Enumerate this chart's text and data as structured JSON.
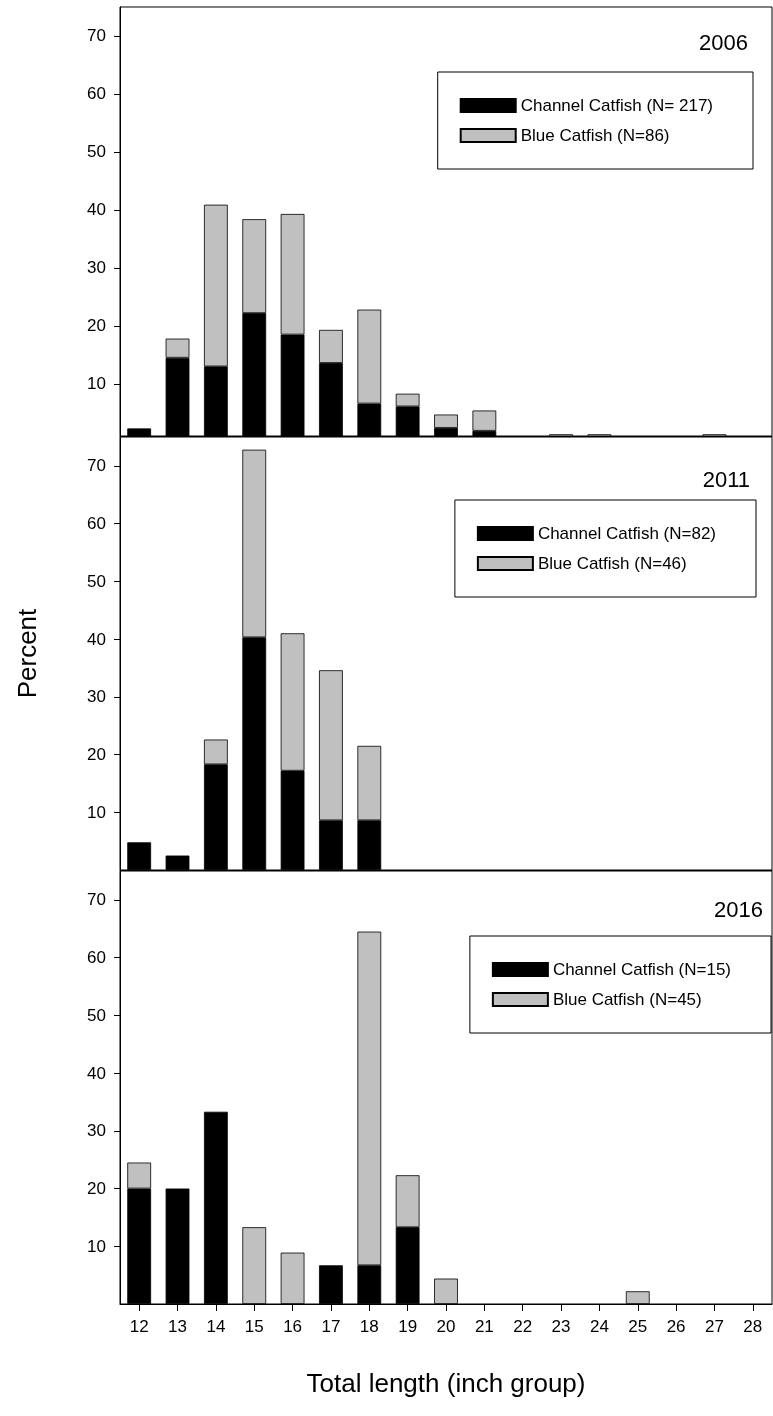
{
  "chart_data": [
    {
      "type": "bar",
      "title": "2006",
      "stacked": true,
      "categories": [
        "12",
        "13",
        "14",
        "15",
        "16",
        "17",
        "18",
        "19",
        "20",
        "21",
        "22",
        "23",
        "24",
        "25",
        "26",
        "27",
        "28"
      ],
      "series": [
        {
          "name": "Channel Catfish (N= 217)",
          "color": "#000000",
          "values": [
            2.3,
            14.5,
            13.0,
            22.2,
            18.5,
            13.6,
            6.6,
            6.1,
            2.4,
            1.9,
            null,
            null,
            null,
            null,
            null,
            null,
            null
          ]
        },
        {
          "name": "Blue Catfish (N=86)",
          "color": "#c0c0c0",
          "values": [
            null,
            3.3,
            27.9,
            16.2,
            20.8,
            5.7,
            16.2,
            2.2,
            2.3,
            3.5,
            null,
            1.3,
            1.3,
            null,
            null,
            1.3,
            null
          ]
        }
      ],
      "ylim": [
        1,
        75
      ],
      "yticks": [
        10,
        20,
        30,
        40,
        50,
        60,
        70
      ],
      "grid": false,
      "legend": "top right",
      "tick_labels": "y"
    },
    {
      "type": "bar",
      "title": "2011",
      "stacked": true,
      "ylabel": "Percent",
      "categories": [
        "12",
        "13",
        "14",
        "15",
        "16",
        "17",
        "18",
        "19",
        "20",
        "21",
        "22",
        "23",
        "24",
        "25",
        "26",
        "27",
        "28"
      ],
      "series": [
        {
          "name": "Channel Catfish (N=82)",
          "color": "#000000",
          "values": [
            4.8,
            2.5,
            18.3,
            40.3,
            17.2,
            8.6,
            8.6,
            null,
            null,
            null,
            null,
            null,
            null,
            null,
            null,
            null,
            null
          ]
        },
        {
          "name": "Blue Catfish (N=46)",
          "color": "#c0c0c0",
          "values": [
            null,
            null,
            4.3,
            32.5,
            23.8,
            26.0,
            12.9,
            null,
            null,
            null,
            null,
            null,
            null,
            null,
            null,
            null,
            null
          ]
        }
      ],
      "ylim": [
        0,
        75
      ],
      "yticks": [
        10,
        20,
        30,
        40,
        50,
        60,
        70
      ],
      "grid": false,
      "legend": "top right",
      "tick_labels": "y"
    },
    {
      "type": "bar",
      "title": "2016",
      "stacked": true,
      "xlabel": "Total length (inch group)",
      "categories": [
        "12",
        "13",
        "14",
        "15",
        "16",
        "17",
        "18",
        "19",
        "20",
        "21",
        "22",
        "23",
        "24",
        "25",
        "26",
        "27",
        "28"
      ],
      "series": [
        {
          "name": "Channel Catfish (N=15)",
          "color": "#000000",
          "values": [
            20,
            20,
            33.3,
            null,
            null,
            6.7,
            6.7,
            13.3,
            null,
            null,
            null,
            null,
            null,
            null,
            null,
            null,
            null
          ]
        },
        {
          "name": "Blue Catfish (N=45)",
          "color": "#c0c0c0",
          "values": [
            4.5,
            null,
            null,
            13.3,
            8.9,
            null,
            57.8,
            9.0,
            4.4,
            null,
            null,
            null,
            null,
            2.2,
            null,
            null,
            null
          ]
        }
      ],
      "ylim": [
        0,
        75
      ],
      "yticks": [
        10,
        20,
        30,
        40,
        50,
        60,
        70
      ],
      "grid": false,
      "legend": "top right"
    }
  ]
}
